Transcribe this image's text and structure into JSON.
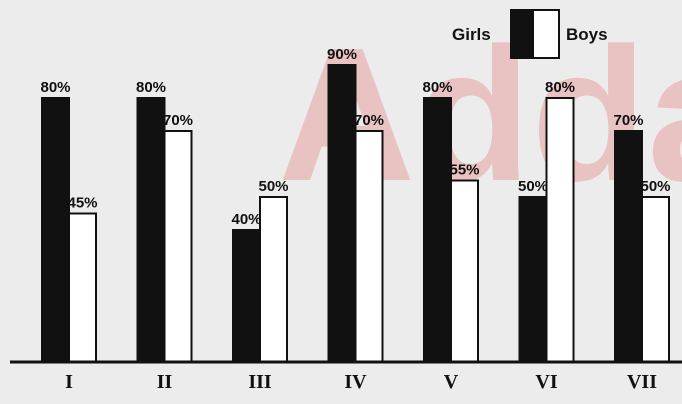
{
  "watermark": "Adda",
  "chart_data": {
    "type": "bar",
    "categories": [
      "I",
      "II",
      "III",
      "IV",
      "V",
      "VI",
      "VII"
    ],
    "series": [
      {
        "name": "Girls",
        "color": "#111111",
        "values": [
          80,
          80,
          40,
          90,
          80,
          50,
          70
        ],
        "labels": [
          "80%",
          "80%",
          "40%",
          "90%",
          "80%",
          "50%",
          "70%"
        ]
      },
      {
        "name": "Boys",
        "color": "#ffffff",
        "values": [
          45,
          70,
          50,
          70,
          55,
          80,
          50
        ],
        "labels": [
          "45%",
          "70%",
          "50%",
          "70%",
          "55%",
          "80%",
          "50%"
        ]
      }
    ],
    "ylim": [
      0,
      100
    ],
    "grid": false,
    "legend": "top-right",
    "title": "",
    "xlabel": "",
    "ylabel": ""
  }
}
